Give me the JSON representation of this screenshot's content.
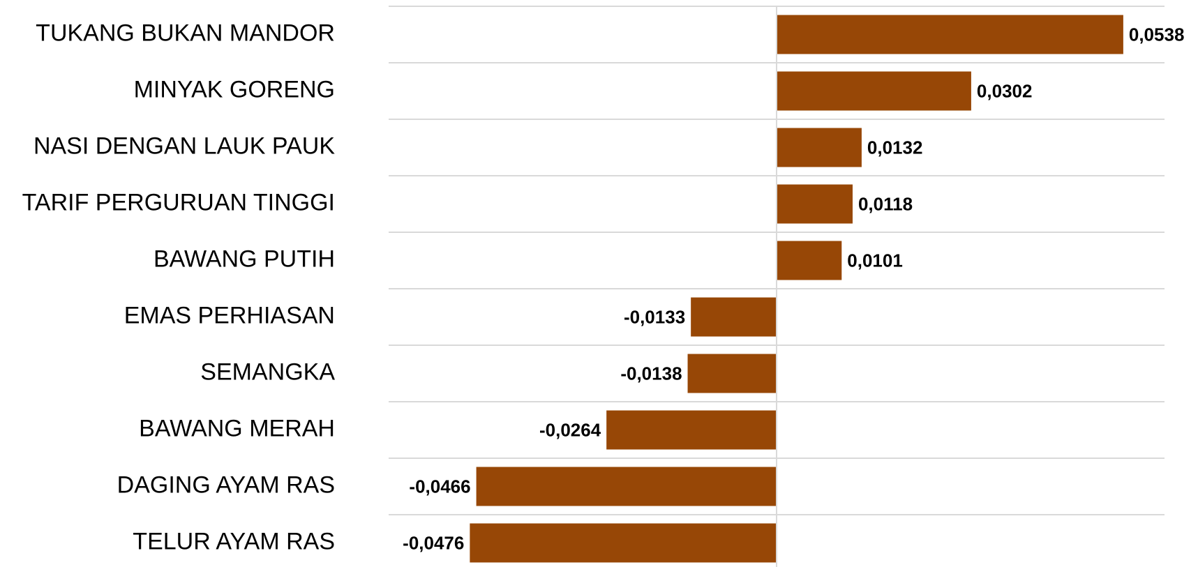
{
  "chart_data": {
    "type": "bar",
    "orientation": "horizontal",
    "title": "",
    "xlabel": "",
    "ylabel": "",
    "grid": true,
    "legend": "none",
    "bar_color": "#974706",
    "gridline_color": "#d9d9d9",
    "categories": [
      "TUKANG BUKAN MANDOR",
      "MINYAK GORENG",
      "NASI DENGAN LAUK PAUK",
      "TARIF PERGURUAN TINGGI",
      "BAWANG PUTIH",
      "EMAS PERHIASAN",
      "SEMANGKA",
      "BAWANG MERAH",
      "DAGING AYAM RAS",
      "TELUR AYAM RAS"
    ],
    "values": [
      0.0538,
      0.0302,
      0.0132,
      0.0118,
      0.0101,
      -0.0133,
      -0.0138,
      -0.0264,
      -0.0466,
      -0.0476
    ],
    "value_labels": [
      "0,0538",
      "0,0302",
      "0,0132",
      "0,0118",
      "0,0101",
      "-0,0133",
      "-0,0138",
      "-0,0264",
      "-0,0466",
      "-0,0476"
    ],
    "xlim": [
      -0.0602,
      0.0602
    ]
  }
}
